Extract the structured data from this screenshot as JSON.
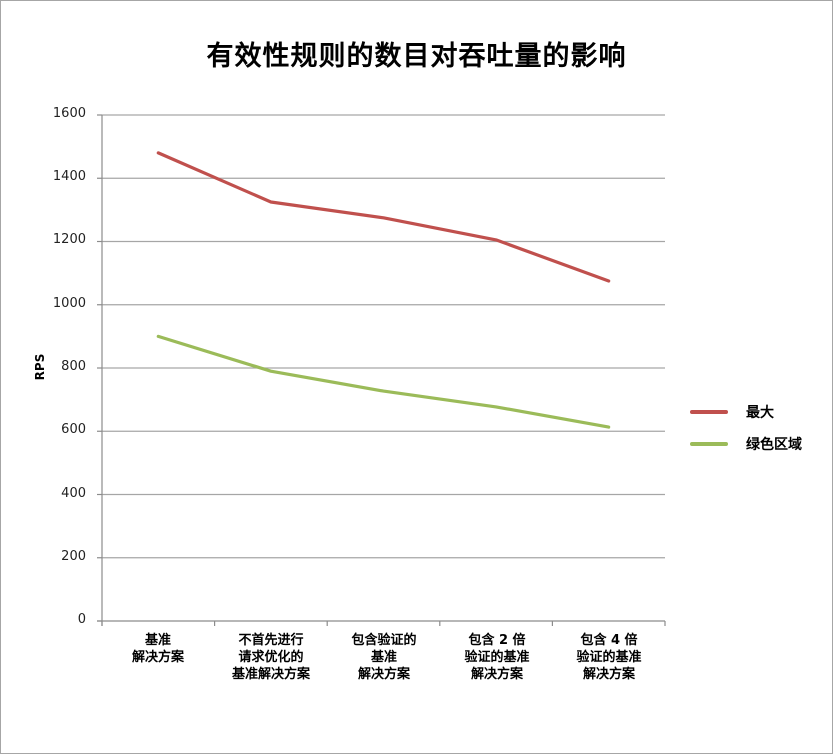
{
  "chart_data": {
    "type": "line",
    "title": "有效性规则的数目对吞吐量的影响",
    "xlabel": "",
    "ylabel": "RPS",
    "ylim": [
      0,
      1600
    ],
    "yticks": [
      0,
      200,
      400,
      600,
      800,
      1000,
      1200,
      1400,
      1600
    ],
    "grid": true,
    "legend_position": "right",
    "categories": [
      "基准\n解决方案",
      "不首先进行\n请求优化的\n基准解决方案",
      "包含验证的\n基准\n解决方案",
      "包含 2 倍\n验证的基准\n解决方案",
      "包含 4 倍\n验证的基准\n解决方案"
    ],
    "series": [
      {
        "name": "最大",
        "color": "#c0504d",
        "values": [
          1480,
          1325,
          1275,
          1205,
          1075
        ]
      },
      {
        "name": "绿色区域",
        "color": "#9bbb59",
        "values": [
          900,
          790,
          727,
          677,
          613
        ]
      }
    ]
  },
  "labels": {
    "title": "有效性规则的数目对吞吐量的影响",
    "ylabel": "RPS",
    "yticks": [
      "0",
      "200",
      "400",
      "600",
      "800",
      "1000",
      "1200",
      "1400",
      "1600"
    ],
    "xcats": [
      "基准\n解决方案",
      "不首先进行\n请求优化的\n基准解决方案",
      "包含验证的\n基准\n解决方案",
      "包含 2 倍\n验证的基准\n解决方案",
      "包含 4 倍\n验证的基准\n解决方案"
    ],
    "legend": [
      "最大",
      "绿色区域"
    ]
  }
}
